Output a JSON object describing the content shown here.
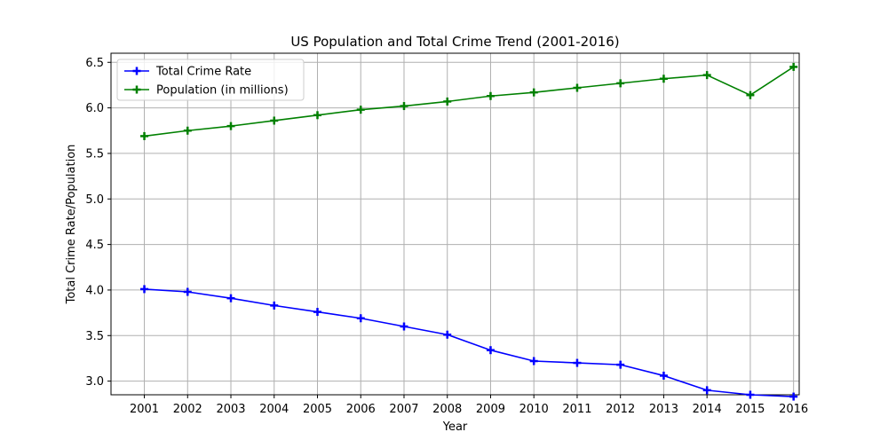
{
  "chart_data": {
    "type": "line",
    "title": "US Population and Total Crime Trend (2001-2016)",
    "xlabel": "Year",
    "ylabel": "Total Crime Rate/Population",
    "categories": [
      "2001",
      "2002",
      "2003",
      "2004",
      "2005",
      "2006",
      "2007",
      "2008",
      "2009",
      "2010",
      "2011",
      "2012",
      "2013",
      "2014",
      "2015",
      "2016"
    ],
    "ylim": [
      2.85,
      6.6
    ],
    "yticks": [
      3.0,
      3.5,
      4.0,
      4.5,
      5.0,
      5.5,
      6.0,
      6.5
    ],
    "ytick_labels": [
      "3.0",
      "3.5",
      "4.0",
      "4.5",
      "5.0",
      "5.5",
      "6.0",
      "6.5"
    ],
    "grid": true,
    "legend_position": "top-left",
    "series": [
      {
        "name": "Total Crime Rate",
        "color": "#0000ff",
        "marker": "plus",
        "values": [
          4.01,
          3.98,
          3.91,
          3.83,
          3.76,
          3.69,
          3.6,
          3.51,
          3.34,
          3.22,
          3.2,
          3.18,
          3.06,
          2.9,
          2.85,
          2.83
        ]
      },
      {
        "name": "Population (in millions)",
        "color": "#008000",
        "marker": "plus",
        "values": [
          5.69,
          5.75,
          5.8,
          5.86,
          5.92,
          5.98,
          6.02,
          6.07,
          6.13,
          6.17,
          6.22,
          6.27,
          6.32,
          6.36,
          6.14,
          6.45
        ]
      }
    ]
  }
}
